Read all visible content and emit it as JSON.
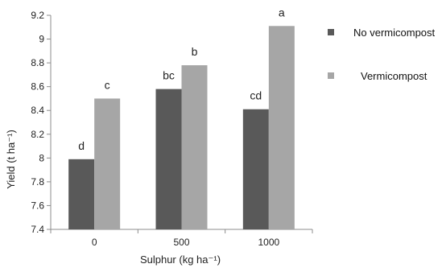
{
  "chart_data": {
    "type": "bar",
    "categories": [
      "0",
      "500",
      "1000"
    ],
    "series": [
      {
        "name": "No vermicompost",
        "values": [
          7.99,
          8.58,
          8.41
        ],
        "labels": [
          "d",
          "bc",
          "cd"
        ],
        "color": "#595959"
      },
      {
        "name": "Vermicompost",
        "values": [
          8.5,
          8.78,
          9.11
        ],
        "labels": [
          "c",
          "b",
          "a"
        ],
        "color": "#a6a6a6"
      }
    ],
    "xlabel": "Sulphur (kg ha⁻¹)",
    "ylabel": "Yield (t ha⁻¹)",
    "ylim": [
      7.4,
      9.2
    ],
    "yticks": [
      "7.4",
      "7.6",
      "7.8",
      "8",
      "8.2",
      "8.4",
      "8.6",
      "8.8",
      "9",
      "9.2"
    ],
    "grid": false,
    "legend_position": "right"
  }
}
